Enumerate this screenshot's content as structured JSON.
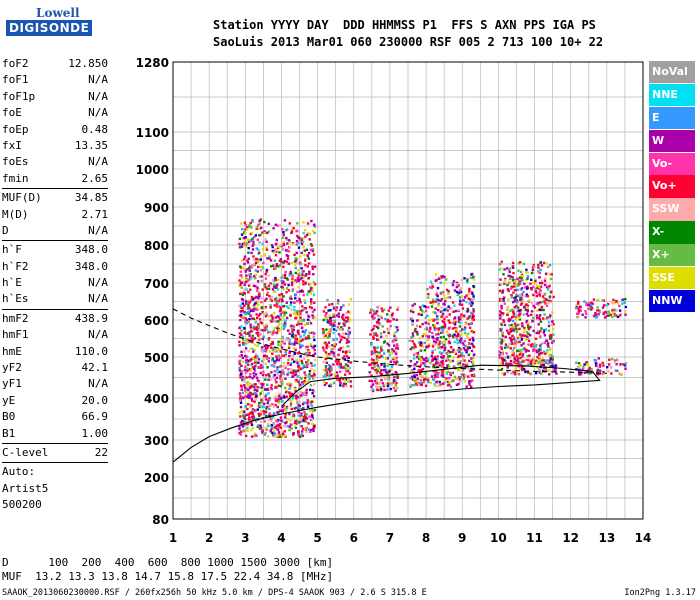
{
  "logo": {
    "line1": "Lowell",
    "line2": "DIGISONDE"
  },
  "header": {
    "row1": "Station YYYY DAY  DDD HHMMSS P1  FFS S AXN PPS IGA PS",
    "row2": "SaoLuis 2013 Mar01 060 230000 RSF 005 2 713 100 10+ 22"
  },
  "params": [
    {
      "k": "foF2",
      "v": "12.850"
    },
    {
      "k": "foF1",
      "v": "N/A"
    },
    {
      "k": "foF1p",
      "v": "N/A"
    },
    {
      "k": "foE",
      "v": "N/A"
    },
    {
      "k": "foEp",
      "v": "0.48"
    },
    {
      "k": "fxI",
      "v": "13.35"
    },
    {
      "k": "foEs",
      "v": "N/A"
    },
    {
      "k": "fmin",
      "v": "2.65"
    },
    {
      "sep": true
    },
    {
      "k": "MUF(D)",
      "v": "34.85"
    },
    {
      "k": "M(D)",
      "v": "2.71"
    },
    {
      "k": "D",
      "v": "N/A"
    },
    {
      "sep": true
    },
    {
      "k": "h`F",
      "v": "348.0"
    },
    {
      "k": "h`F2",
      "v": "348.0"
    },
    {
      "k": "h`E",
      "v": "N/A"
    },
    {
      "k": "h`Es",
      "v": "N/A"
    },
    {
      "sep": true
    },
    {
      "k": "hmF2",
      "v": "438.9"
    },
    {
      "k": "hmF1",
      "v": "N/A"
    },
    {
      "k": "hmE",
      "v": "110.0"
    },
    {
      "k": "yF2",
      "v": "42.1"
    },
    {
      "k": "yF1",
      "v": "N/A"
    },
    {
      "k": "yE",
      "v": "20.0"
    },
    {
      "k": "B0",
      "v": "66.9"
    },
    {
      "k": "B1",
      "v": "1.00"
    },
    {
      "sep": true
    },
    {
      "k": "C-level",
      "v": "22"
    },
    {
      "sep": true
    },
    {
      "k": "Auto:",
      "v": ""
    },
    {
      "k": "Artist5",
      "v": ""
    },
    {
      "k": "500200",
      "v": ""
    }
  ],
  "legend": [
    {
      "label": "NoVal",
      "color": "#a0a0a0"
    },
    {
      "label": "NNE",
      "color": "#00e0f0"
    },
    {
      "label": "E",
      "color": "#3399ff"
    },
    {
      "label": "W",
      "color": "#aa00aa"
    },
    {
      "label": "Vo-",
      "color": "#ff33aa"
    },
    {
      "label": "Vo+",
      "color": "#ff0033"
    },
    {
      "label": "SSW",
      "color": "#ffaaaa"
    },
    {
      "label": "X-",
      "color": "#008800"
    },
    {
      "label": "X+",
      "color": "#66bb44"
    },
    {
      "label": "SSE",
      "color": "#dddd00"
    },
    {
      "label": "NNW",
      "color": "#0000dd"
    }
  ],
  "footer": {
    "d_row": "D      100  200  400  600  800 1000 1500 3000 [km]",
    "muf_row": "MUF  13.2 13.3 13.8 14.7 15.8 17.5 22.4 34.8 [MHz]",
    "file_info": "SAAOK_2013060230000.RSF / 260fx256h 50 kHz 5.0 km / DPS-4 SAAOK 903 / 2.6 S 315.8 E",
    "version": "Ion2Png 1.3.17"
  },
  "chart_data": {
    "type": "scatter",
    "x_ticks": [
      1,
      2,
      3,
      4,
      5,
      6,
      7,
      8,
      9,
      10,
      11,
      12,
      13,
      14
    ],
    "y_ticks": [
      80,
      200,
      300,
      400,
      500,
      600,
      700,
      800,
      900,
      1000,
      1100,
      1280
    ],
    "xlim": [
      1,
      14
    ],
    "ylim": [
      80,
      1280
    ],
    "grid": true,
    "echo_clusters": [
      {
        "x": [
          2.8,
          4.9
        ],
        "y": [
          310,
          870
        ]
      },
      {
        "x": [
          5.1,
          5.9
        ],
        "y": [
          430,
          660
        ]
      },
      {
        "x": [
          6.4,
          7.2
        ],
        "y": [
          420,
          640
        ]
      },
      {
        "x": [
          7.5,
          8.0
        ],
        "y": [
          430,
          650
        ]
      },
      {
        "x": [
          8.0,
          9.3
        ],
        "y": [
          430,
          730
        ]
      },
      {
        "x": [
          10.0,
          11.5
        ],
        "y": [
          480,
          760
        ]
      },
      {
        "x": [
          10.0,
          11.6
        ],
        "y": [
          460,
          500
        ]
      },
      {
        "x": [
          12.1,
          13.5
        ],
        "y": [
          610,
          660
        ]
      },
      {
        "x": [
          12.1,
          13.5
        ],
        "y": [
          460,
          500
        ]
      }
    ],
    "solid_profile": [
      [
        1.0,
        240
      ],
      [
        1.5,
        280
      ],
      [
        2.0,
        308
      ],
      [
        2.6,
        328
      ],
      [
        3.3,
        348
      ],
      [
        4.0,
        362
      ],
      [
        5.0,
        378
      ],
      [
        6.0,
        392
      ],
      [
        7.0,
        404
      ],
      [
        8.0,
        414
      ],
      [
        9.0,
        422
      ],
      [
        10.0,
        428
      ],
      [
        11.0,
        432
      ],
      [
        12.0,
        438
      ],
      [
        12.8,
        443
      ],
      [
        12.6,
        465
      ],
      [
        11.8,
        472
      ],
      [
        10.8,
        478
      ],
      [
        9.5,
        480
      ],
      [
        8.5,
        470
      ],
      [
        7.5,
        460
      ],
      [
        6.5,
        452
      ],
      [
        5.5,
        448
      ],
      [
        4.8,
        440
      ],
      [
        4.4,
        415
      ],
      [
        4.0,
        380
      ]
    ],
    "dashed_profile": [
      [
        1.0,
        630
      ],
      [
        1.5,
        605
      ],
      [
        2.0,
        585
      ],
      [
        2.5,
        565
      ],
      [
        3.0,
        548
      ],
      [
        3.5,
        535
      ],
      [
        4.0,
        522
      ],
      [
        4.5,
        510
      ],
      [
        5.0,
        500
      ],
      [
        6.0,
        490
      ],
      [
        7.0,
        482
      ],
      [
        8.0,
        476
      ],
      [
        9.0,
        472
      ],
      [
        10.0,
        468
      ],
      [
        11.0,
        465
      ],
      [
        12.0,
        463
      ],
      [
        13.0,
        460
      ]
    ]
  }
}
